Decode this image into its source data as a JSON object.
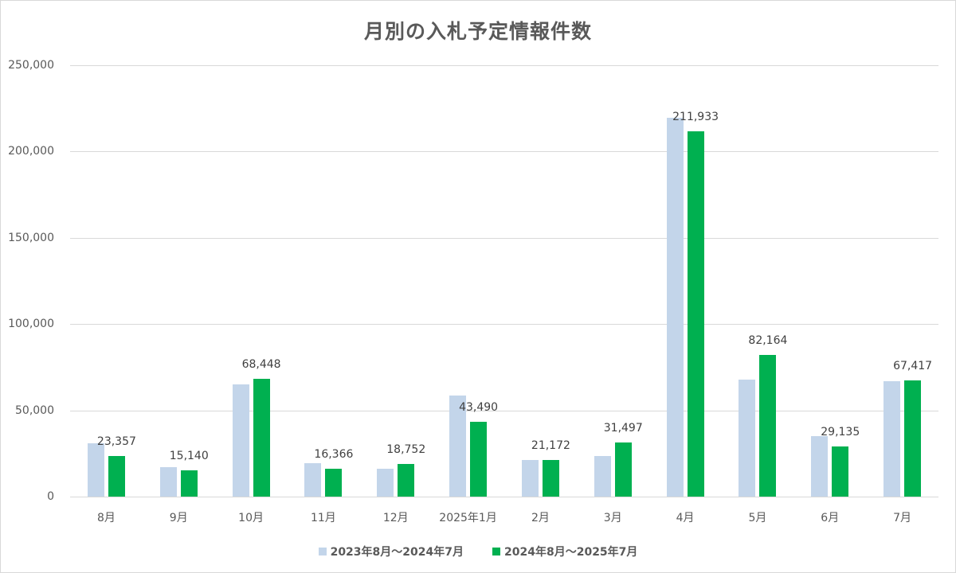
{
  "chart_data": {
    "type": "bar",
    "title": "月別の入札予定情報件数",
    "xlabel": "",
    "ylabel": "",
    "ylim": [
      0,
      250000
    ],
    "yticks": [
      0,
      50000,
      100000,
      150000,
      200000,
      250000
    ],
    "ytick_labels": [
      "0",
      "50,000",
      "100,000",
      "150,000",
      "200,000",
      "250,000"
    ],
    "grid": true,
    "legend_position": "bottom",
    "categories": [
      "8月",
      "9月",
      "10月",
      "11月",
      "12月",
      "2025年1月",
      "2月",
      "3月",
      "4月",
      "5月",
      "6月",
      "7月"
    ],
    "series": [
      {
        "name": "2023年8月～2024年7月",
        "color": "#C3D5EA",
        "values": [
          31000,
          17000,
          65000,
          19500,
          16000,
          58500,
          21300,
          23500,
          219500,
          67800,
          35000,
          67000
        ],
        "labels": [
          "",
          "",
          "",
          "",
          "",
          "",
          "",
          "",
          "",
          "",
          "",
          ""
        ]
      },
      {
        "name": "2024年8月～2025年7月",
        "color": "#00B050",
        "values": [
          23357,
          15140,
          68448,
          16366,
          18752,
          43490,
          21172,
          31497,
          211933,
          82164,
          29135,
          67417
        ],
        "labels": [
          "23,357",
          "15,140",
          "68,448",
          "16,366",
          "18,752",
          "43,490",
          "21,172",
          "31,497",
          "211,933",
          "82,164",
          "29,135",
          "67,417"
        ]
      }
    ]
  }
}
